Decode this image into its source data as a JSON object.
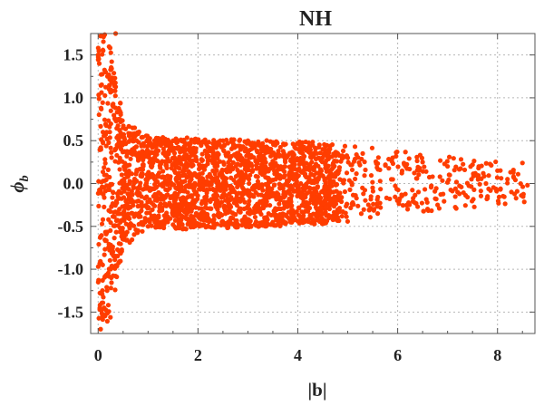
{
  "chart_data": {
    "type": "scatter",
    "title": "NH",
    "xlabel": "|b|",
    "ylabel": "ϕ",
    "ylabel_subscript": "b",
    "xlim": [
      -0.15,
      8.75
    ],
    "ylim": [
      -1.75,
      1.75
    ],
    "xticks": [
      0,
      2,
      4,
      6,
      8
    ],
    "xtick_labels": [
      "0",
      "2",
      "4",
      "6",
      "8"
    ],
    "yticks": [
      -1.5,
      -1.0,
      -0.5,
      0.0,
      0.5,
      1.0,
      1.5
    ],
    "ytick_labels": [
      "-1.5",
      "-1.0",
      "-0.5",
      "0.0",
      "0.5",
      "1.0",
      "1.5"
    ],
    "grid": true,
    "marker_color": "#ff3d00",
    "series": [
      {
        "points": [
          [
            0.05,
            1.72
          ],
          [
            0.1,
            1.55
          ],
          [
            0.15,
            1.3
          ],
          [
            0.22,
            1.1
          ],
          [
            0.3,
            0.9
          ],
          [
            0.35,
            1.75
          ],
          [
            0.4,
            0.75
          ],
          [
            0.5,
            0.65
          ],
          [
            0.05,
            -1.7
          ],
          [
            0.12,
            -1.45
          ],
          [
            0.18,
            -1.25
          ],
          [
            0.25,
            -1.0
          ],
          [
            0.32,
            -0.85
          ],
          [
            0.42,
            -0.7
          ],
          [
            0.55,
            -0.6
          ],
          [
            0.8,
            0.58
          ],
          [
            1.0,
            0.52
          ],
          [
            1.5,
            0.5
          ],
          [
            2.0,
            0.48
          ],
          [
            2.5,
            0.5
          ],
          [
            3.0,
            0.5
          ],
          [
            3.5,
            0.48
          ],
          [
            4.0,
            0.47
          ],
          [
            0.8,
            -0.55
          ],
          [
            1.0,
            -0.5
          ],
          [
            1.5,
            -0.48
          ],
          [
            2.0,
            -0.47
          ],
          [
            2.5,
            -0.46
          ],
          [
            3.0,
            -0.45
          ],
          [
            3.5,
            -0.45
          ],
          [
            4.0,
            -0.44
          ],
          [
            4.5,
            0.4
          ],
          [
            4.8,
            0.35
          ],
          [
            5.0,
            0.3
          ],
          [
            5.3,
            0.35
          ],
          [
            5.6,
            -0.35
          ],
          [
            5.9,
            0.3
          ],
          [
            6.2,
            -0.3
          ],
          [
            6.5,
            0.25
          ],
          [
            6.8,
            -0.25
          ],
          [
            7.0,
            0.2
          ],
          [
            7.2,
            -0.1
          ],
          [
            7.5,
            0.22
          ],
          [
            7.8,
            -0.15
          ],
          [
            8.0,
            0.15
          ],
          [
            8.2,
            0.05
          ],
          [
            8.5,
            0.24
          ],
          [
            8.6,
            -0.02
          ]
        ]
      }
    ]
  }
}
